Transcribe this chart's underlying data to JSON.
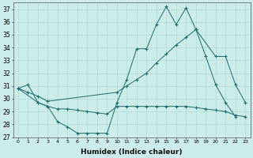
{
  "xlabel": "Humidex (Indice chaleur)",
  "bg_color": "#ccecea",
  "line_color": "#1a6b6b",
  "grid_color": "#aad8d6",
  "series": [
    {
      "x": [
        0,
        1,
        2,
        3,
        4,
        5,
        6,
        7,
        8,
        9,
        10,
        11,
        12,
        13,
        14,
        15,
        16,
        17,
        18,
        19,
        20,
        21,
        22
      ],
      "y": [
        30.8,
        31.1,
        29.7,
        29.4,
        28.2,
        27.8,
        27.3,
        27.3,
        27.3,
        27.3,
        29.7,
        31.5,
        33.9,
        33.9,
        35.8,
        37.2,
        35.8,
        37.1,
        35.4,
        33.3,
        31.1,
        29.7,
        28.6
      ]
    },
    {
      "x": [
        0,
        1,
        2,
        3,
        10,
        11,
        12,
        13,
        14,
        15,
        16,
        17,
        18,
        20,
        21,
        22,
        23
      ],
      "y": [
        30.8,
        30.5,
        30.2,
        29.8,
        30.5,
        31.0,
        31.5,
        32.0,
        32.8,
        33.5,
        34.2,
        34.8,
        35.4,
        33.3,
        33.3,
        31.1,
        29.7
      ]
    },
    {
      "x": [
        0,
        2,
        3,
        4,
        5,
        6,
        7,
        8,
        9,
        10,
        11,
        12,
        13,
        14,
        15,
        16,
        17,
        18,
        19,
        20,
        21,
        22,
        23
      ],
      "y": [
        30.8,
        29.7,
        29.4,
        29.2,
        29.2,
        29.1,
        29.0,
        28.9,
        28.8,
        29.4,
        29.4,
        29.4,
        29.4,
        29.4,
        29.4,
        29.4,
        29.4,
        29.3,
        29.2,
        29.1,
        29.0,
        28.7,
        28.6
      ]
    }
  ],
  "xlim": [
    -0.5,
    23.5
  ],
  "ylim": [
    27,
    37.5
  ],
  "yticks": [
    27,
    28,
    29,
    30,
    31,
    32,
    33,
    34,
    35,
    36,
    37
  ],
  "xticks": [
    0,
    1,
    2,
    3,
    4,
    5,
    6,
    7,
    8,
    9,
    10,
    11,
    12,
    13,
    14,
    15,
    16,
    17,
    18,
    19,
    20,
    21,
    22,
    23
  ]
}
